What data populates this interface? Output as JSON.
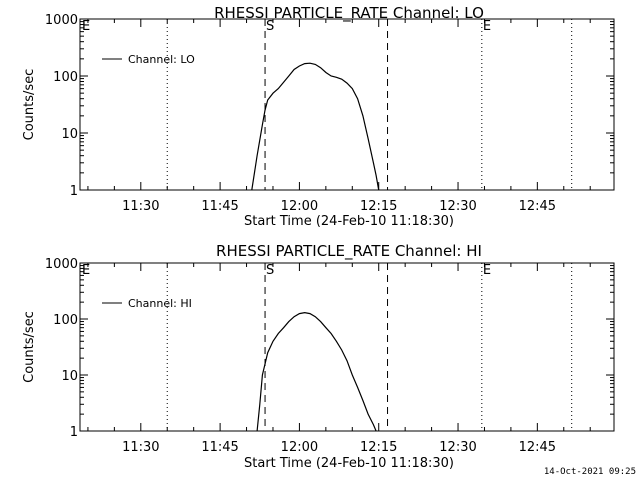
{
  "chart_data": [
    {
      "type": "line",
      "title": "RHESSI PARTICLE_RATE Channel: LO",
      "xlabel": "Start Time (24-Feb-10 11:18:30)",
      "ylabel": "Counts/sec",
      "yscale": "log",
      "ylim": [
        1,
        1000
      ],
      "xlim": [
        "11:18:30",
        "12:59:30"
      ],
      "x_ticks": [
        "11:30",
        "11:45",
        "12:00",
        "12:15",
        "12:30",
        "12:45"
      ],
      "y_ticks": [
        "1",
        "10",
        "100",
        "1000"
      ],
      "grid": false,
      "legend_position": "top-left",
      "series": [
        {
          "name": "Channel: LO",
          "x": [
            "11:51:00",
            "11:52:00",
            "11:53:00",
            "11:53:30",
            "11:54:00",
            "11:55:00",
            "11:56:00",
            "11:57:00",
            "11:58:00",
            "11:59:00",
            "12:00:00",
            "12:01:00",
            "12:02:00",
            "12:03:00",
            "12:04:00",
            "12:05:00",
            "12:06:00",
            "12:07:00",
            "12:08:00",
            "12:09:00",
            "12:10:00",
            "12:11:00",
            "12:12:00",
            "12:13:00",
            "12:14:00",
            "12:14:30",
            "12:15:00"
          ],
          "y": [
            1,
            4,
            14,
            25,
            38,
            50,
            60,
            78,
            100,
            130,
            150,
            165,
            168,
            160,
            140,
            115,
            100,
            95,
            88,
            75,
            60,
            40,
            20,
            8,
            3,
            1.8,
            1
          ]
        }
      ],
      "markers": [
        {
          "label": "S",
          "time": "11:53:30",
          "style": "dashed"
        },
        {
          "label": "",
          "time": "12:16:40",
          "style": "dashed"
        },
        {
          "label": "",
          "time": "11:35:00",
          "style": "dotted"
        },
        {
          "label": "E",
          "time": "12:34:30",
          "style": "dotted"
        },
        {
          "label": "",
          "time": "12:51:30",
          "style": "dotted"
        },
        {
          "label": "E",
          "time": "11:18:30",
          "style": "none"
        }
      ]
    },
    {
      "type": "line",
      "title": "RHESSI PARTICLE_RATE Channel: HI",
      "xlabel": "Start Time (24-Feb-10 11:18:30)",
      "ylabel": "Counts/sec",
      "yscale": "log",
      "ylim": [
        1,
        1000
      ],
      "xlim": [
        "11:18:30",
        "12:59:30"
      ],
      "x_ticks": [
        "11:30",
        "11:45",
        "12:00",
        "12:15",
        "12:30",
        "12:45"
      ],
      "y_ticks": [
        "1",
        "10",
        "100",
        "1000"
      ],
      "grid": false,
      "legend_position": "top-left",
      "series": [
        {
          "name": "Channel: HI",
          "x": [
            "11:52:00",
            "11:52:30",
            "11:53:00",
            "11:54:00",
            "11:55:00",
            "11:56:00",
            "11:57:00",
            "11:58:00",
            "11:59:00",
            "12:00:00",
            "12:01:00",
            "12:02:00",
            "12:03:00",
            "12:04:00",
            "12:05:00",
            "12:06:00",
            "12:07:00",
            "12:08:00",
            "12:09:00",
            "12:10:00",
            "12:11:00",
            "12:12:00",
            "12:13:00",
            "12:14:00",
            "12:14:30"
          ],
          "y": [
            1,
            3,
            10,
            25,
            40,
            55,
            70,
            90,
            110,
            125,
            130,
            125,
            110,
            90,
            70,
            55,
            40,
            28,
            18,
            10,
            6,
            3.5,
            2,
            1.3,
            1
          ]
        }
      ],
      "markers": [
        {
          "label": "S",
          "time": "11:53:30",
          "style": "dashed"
        },
        {
          "label": "",
          "time": "12:16:40",
          "style": "dashed"
        },
        {
          "label": "",
          "time": "11:35:00",
          "style": "dotted"
        },
        {
          "label": "E",
          "time": "12:34:30",
          "style": "dotted"
        },
        {
          "label": "",
          "time": "12:51:30",
          "style": "dotted"
        },
        {
          "label": "E",
          "time": "11:18:30",
          "style": "none"
        }
      ]
    }
  ],
  "footer": {
    "timestamp": "14-Oct-2021 09:25"
  }
}
